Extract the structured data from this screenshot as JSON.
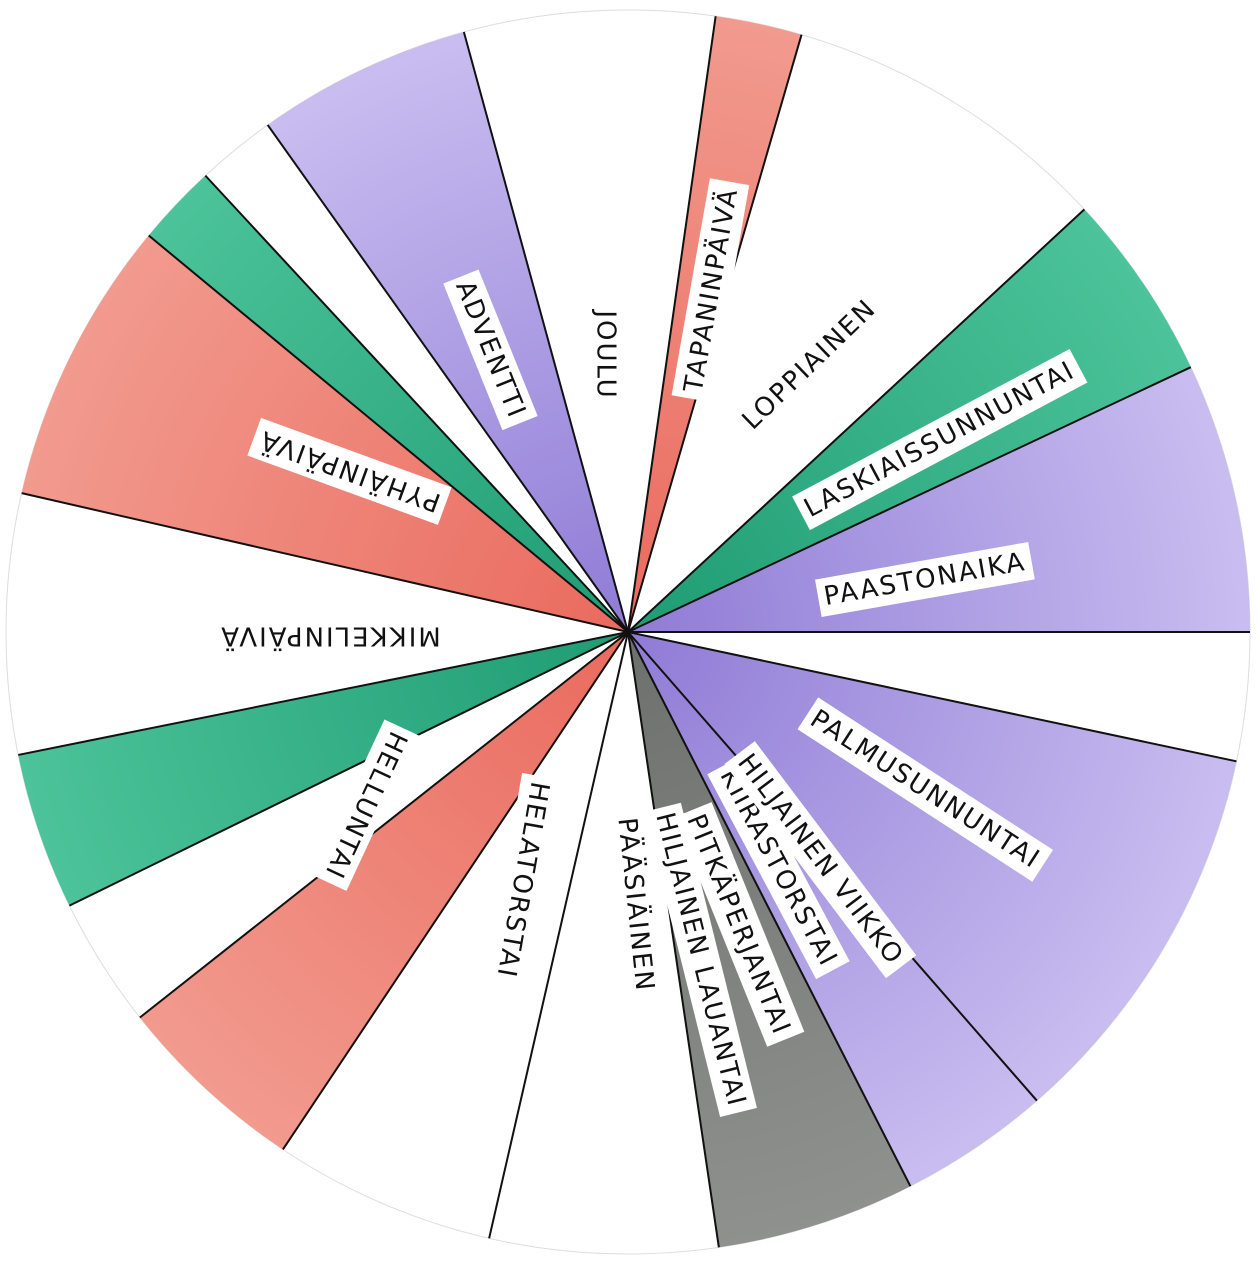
{
  "labels": [
    "TAPANINPÄIVÄ",
    "JOULU",
    "ADVENTTI",
    "PYHÄINPÄIVÄ",
    "MIKKELINPÄIVÄ",
    "HELLUNTAI",
    "HELATORSTAI",
    "PÄÄSIÄINEN",
    "HILJAINEN LAUANTAI",
    "PITKÄPERJANTAI",
    "KIIRASTORSTAI",
    "HILJAINEN VIIKKO",
    "PALMUSUNNUNTAI",
    "PAASTONAIKA",
    "LASKIAISSUNNUNTAI",
    "LOPPIAINEN"
  ]
}
